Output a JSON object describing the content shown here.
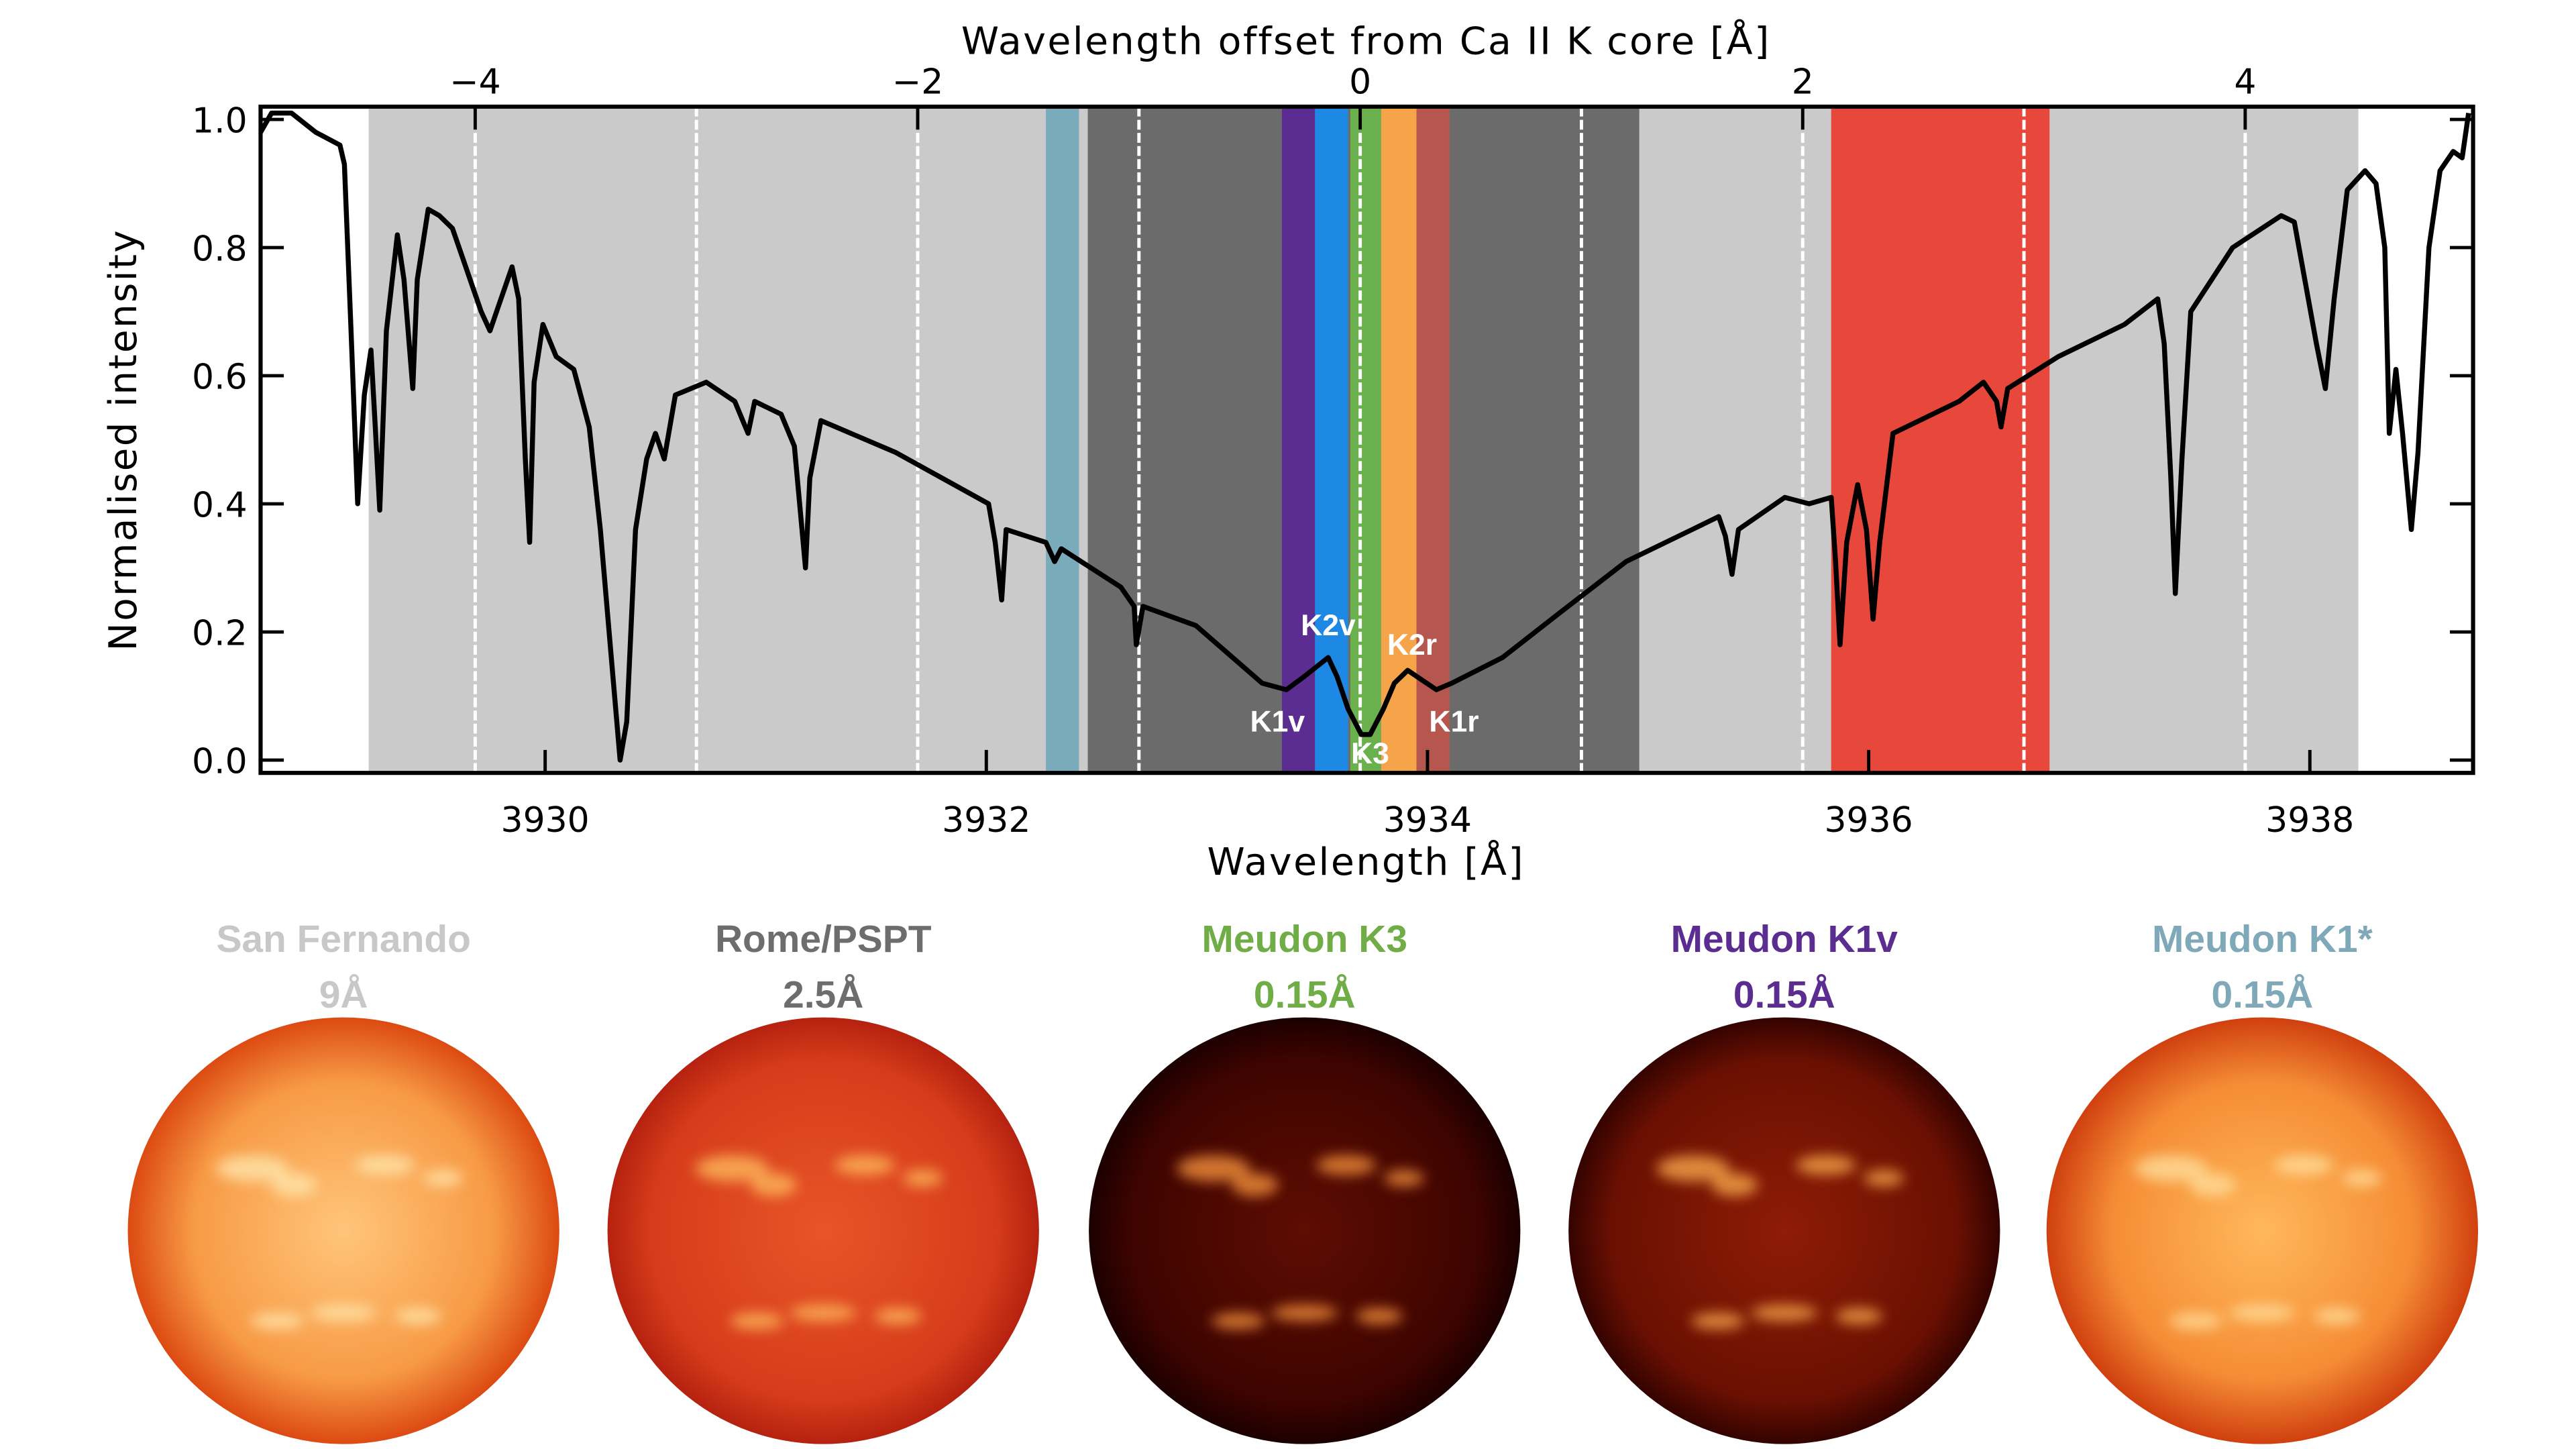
{
  "chart_data": {
    "type": "line",
    "xlabel": "Wavelength [Å]",
    "ylabel": "Normalised intensity",
    "x2label": "Wavelength offset from Ca II K core [Å]",
    "xlim": [
      3928.71,
      3938.74
    ],
    "xticks": [
      3930,
      3932,
      3934,
      3936,
      3938
    ],
    "x2lim": [
      -4.97,
      5.03
    ],
    "x2ticks": [
      {
        "value": -4,
        "label": "−4"
      },
      {
        "value": -2,
        "label": "−2"
      },
      0,
      2,
      4
    ],
    "x2grid": [
      -4,
      -3,
      -2,
      -1,
      0,
      1,
      2,
      3,
      4
    ],
    "ylim": [
      -0.02,
      1.02
    ],
    "yticks": [
      {
        "value": 0,
        "label": "0.0"
      },
      {
        "value": 0.2,
        "label": "0.2"
      },
      {
        "value": 0.4,
        "label": "0.4"
      },
      {
        "value": 0.6,
        "label": "0.6"
      },
      {
        "value": 0.8,
        "label": "0.8"
      },
      {
        "value": 1,
        "label": "1.0"
      }
    ],
    "bands": [
      {
        "range": [
          3929.2,
          3938.22
        ],
        "color": "#cacaca"
      },
      {
        "range": [
          3932.46,
          3934.96
        ],
        "color": "#6b6b6b"
      },
      {
        "range": [
          3932.27,
          3932.42
        ],
        "color": "#7aabbb"
      },
      {
        "range": [
          3935.83,
          3936.82
        ],
        "color": "#e8473b"
      },
      {
        "range": [
          3933.34,
          3933.49
        ],
        "color": "#5c2d91"
      },
      {
        "range": [
          3933.49,
          3933.64
        ],
        "color": "#1e88e5"
      },
      {
        "range": [
          3933.65,
          3933.79
        ],
        "color": "#6ab04c"
      },
      {
        "range": [
          3933.79,
          3933.95
        ],
        "color": "#f5a44a"
      },
      {
        "range": [
          3933.95,
          3934.1
        ],
        "color": "#b5574f"
      }
    ],
    "annotations": [
      {
        "text": "K1v",
        "x": 3933.32,
        "y": 0.06
      },
      {
        "text": "K2v",
        "x": 3933.55,
        "y": 0.21
      },
      {
        "text": "K3",
        "x": 3933.74,
        "y": 0.01
      },
      {
        "text": "K2r",
        "x": 3933.93,
        "y": 0.18
      },
      {
        "text": "K1r",
        "x": 3934.12,
        "y": 0.06
      }
    ],
    "series": [
      {
        "color": "#000000",
        "x": [
          3928.71,
          3928.76,
          3928.85,
          3928.96,
          3929.07,
          3929.09,
          3929.12,
          3929.15,
          3929.18,
          3929.21,
          3929.23,
          3929.25,
          3929.28,
          3929.33,
          3929.36,
          3929.4,
          3929.42,
          3929.47,
          3929.52,
          3929.58,
          3929.64,
          3929.71,
          3929.75,
          3929.79,
          3929.85,
          3929.88,
          3929.91,
          3929.93,
          3929.95,
          3929.99,
          3930.05,
          3930.13,
          3930.2,
          3930.25,
          3930.3,
          3930.34,
          3930.37,
          3930.41,
          3930.46,
          3930.5,
          3930.54,
          3930.59,
          3930.73,
          3930.86,
          3930.92,
          3930.95,
          3931.07,
          3931.13,
          3931.18,
          3931.2,
          3931.25,
          3931.59,
          3932.01,
          3932.04,
          3932.07,
          3932.09,
          3932.27,
          3932.31,
          3932.34,
          3932.61,
          3932.67,
          3932.68,
          3932.71,
          3932.95,
          3933.25,
          3933.36,
          3933.44,
          3933.55,
          3933.59,
          3933.64,
          3933.7,
          3933.74,
          3933.8,
          3933.85,
          3933.91,
          3934.04,
          3934.11,
          3934.34,
          3934.6,
          3934.9,
          3935.2,
          3935.32,
          3935.35,
          3935.38,
          3935.41,
          3935.62,
          3935.73,
          3935.83,
          3935.85,
          3935.87,
          3935.9,
          3935.95,
          3935.99,
          3936.02,
          3936.05,
          3936.11,
          3936.41,
          3936.52,
          3936.58,
          3936.6,
          3936.63,
          3936.86,
          3937.16,
          3937.31,
          3937.34,
          3937.37,
          3937.39,
          3937.42,
          3937.46,
          3937.65,
          3937.87,
          3937.93,
          3938.03,
          3938.07,
          3938.11,
          3938.17,
          3938.25,
          3938.3,
          3938.34,
          3938.36,
          3938.39,
          3938.42,
          3938.46,
          3938.49,
          3938.54,
          3938.59,
          3938.65,
          3938.69,
          3938.72
        ],
        "y": [
          0.98,
          1.01,
          1.01,
          0.98,
          0.96,
          0.93,
          0.67,
          0.4,
          0.57,
          0.64,
          0.52,
          0.39,
          0.67,
          0.82,
          0.75,
          0.58,
          0.75,
          0.86,
          0.85,
          0.83,
          0.77,
          0.7,
          0.67,
          0.71,
          0.77,
          0.72,
          0.47,
          0.34,
          0.59,
          0.68,
          0.63,
          0.61,
          0.52,
          0.36,
          0.16,
          0.0,
          0.06,
          0.36,
          0.47,
          0.51,
          0.47,
          0.57,
          0.59,
          0.56,
          0.51,
          0.56,
          0.54,
          0.49,
          0.3,
          0.44,
          0.53,
          0.48,
          0.4,
          0.34,
          0.25,
          0.36,
          0.34,
          0.31,
          0.33,
          0.27,
          0.24,
          0.18,
          0.24,
          0.21,
          0.12,
          0.11,
          0.13,
          0.16,
          0.13,
          0.08,
          0.04,
          0.04,
          0.08,
          0.12,
          0.14,
          0.11,
          0.12,
          0.16,
          0.23,
          0.31,
          0.36,
          0.38,
          0.35,
          0.29,
          0.36,
          0.41,
          0.4,
          0.41,
          0.31,
          0.18,
          0.34,
          0.43,
          0.36,
          0.22,
          0.34,
          0.51,
          0.56,
          0.59,
          0.56,
          0.52,
          0.58,
          0.63,
          0.68,
          0.72,
          0.65,
          0.44,
          0.26,
          0.47,
          0.7,
          0.8,
          0.85,
          0.84,
          0.65,
          0.58,
          0.72,
          0.89,
          0.92,
          0.9,
          0.8,
          0.51,
          0.61,
          0.51,
          0.36,
          0.48,
          0.8,
          0.92,
          0.95,
          0.94,
          1.01
        ]
      }
    ]
  },
  "panels": [
    {
      "name": "San Fernando",
      "width": "9Å",
      "color": "#c8c8c8"
    },
    {
      "name": "Rome/PSPT",
      "width": "2.5Å",
      "color": "#6d6d6d"
    },
    {
      "name": "Meudon K3",
      "width": "0.15Å",
      "color": "#70ad47"
    },
    {
      "name": "Meudon K1v",
      "width": "0.15Å",
      "color": "#5b2d90"
    },
    {
      "name": "Meudon K1*",
      "width": "0.15Å",
      "color": "#7fa9b8"
    }
  ]
}
